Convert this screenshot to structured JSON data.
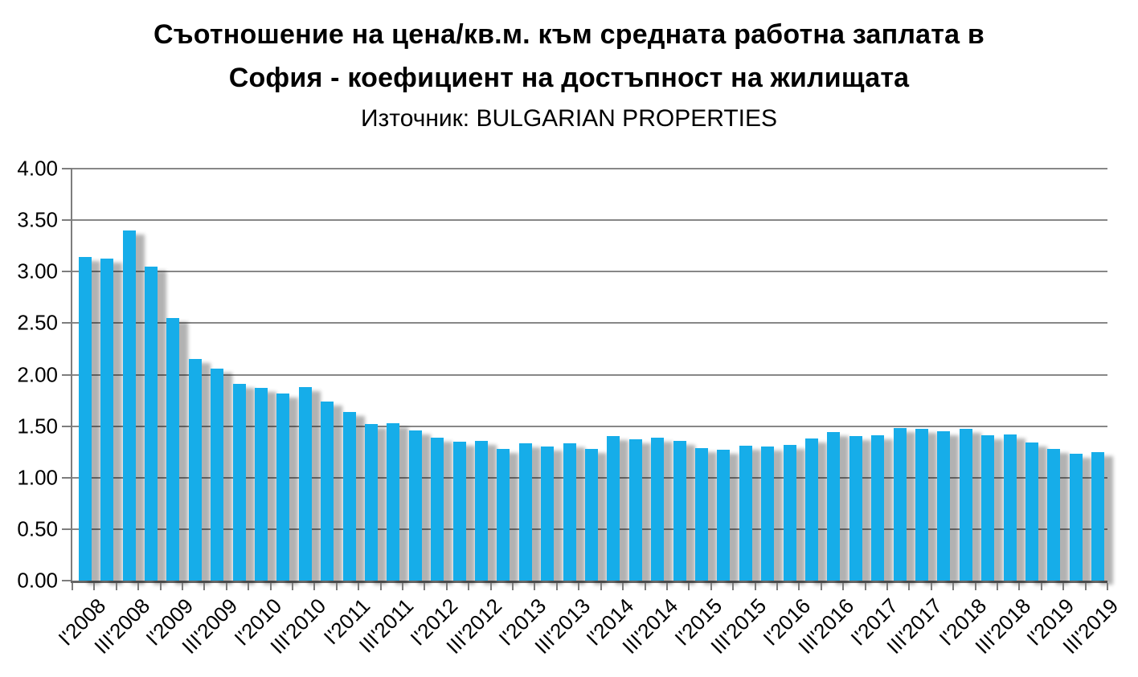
{
  "title": {
    "line1": "Съотношение на цена/кв.м. към средната работна заплата в",
    "line2": "София - коефициент на достъпност на жилищата",
    "source": "Източник: BULGARIAN PROPERTIES"
  },
  "chart_data": {
    "type": "bar",
    "title": "Съотношение на цена/кв.м. към средната работна заплата в София - коефициент на достъпност на жилищата",
    "subtitle": "Източник: BULGARIAN PROPERTIES",
    "categories": [
      "I'2008",
      "II'2008",
      "III'2008",
      "IV'2008",
      "I'2009",
      "II'2009",
      "III'2009",
      "IV'2009",
      "I'2010",
      "II'2010",
      "III'2010",
      "IV'2010",
      "I'2011",
      "II'2011",
      "III'2011",
      "IV'2011",
      "I'2012",
      "II'2012",
      "III'2012",
      "IV'2012",
      "I'2013",
      "II'2013",
      "III'2013",
      "IV'2013",
      "I'2014",
      "II'2014",
      "III'2014",
      "IV'2014",
      "I'2015",
      "II'2015",
      "III'2015",
      "IV'2015",
      "I'2016",
      "II'2016",
      "III'2016",
      "IV'2016",
      "I'2017",
      "II'2017",
      "III'2017",
      "IV'2017",
      "I'2018",
      "II'2018",
      "III'2018",
      "IV'2018",
      "I'2019",
      "II'2019",
      "III'2019"
    ],
    "values": [
      3.14,
      3.13,
      3.4,
      3.05,
      2.55,
      2.15,
      2.06,
      1.91,
      1.87,
      1.82,
      1.88,
      1.74,
      1.64,
      1.52,
      1.53,
      1.46,
      1.39,
      1.35,
      1.36,
      1.28,
      1.33,
      1.3,
      1.33,
      1.28,
      1.4,
      1.37,
      1.39,
      1.36,
      1.29,
      1.27,
      1.31,
      1.3,
      1.32,
      1.38,
      1.44,
      1.4,
      1.41,
      1.48,
      1.47,
      1.45,
      1.47,
      1.41,
      1.42,
      1.34,
      1.28,
      1.23,
      1.25
    ],
    "x_label_interval": 2,
    "visible_x_labels": [
      "I'2008",
      "III'2008",
      "I'2009",
      "III'2009",
      "I'2010",
      "III'2010",
      "I'2011",
      "III'2011",
      "I'2012",
      "III'2012",
      "I'2013",
      "III'2013",
      "I'2014",
      "III'2014",
      "I'2015",
      "III'2015",
      "I'2016",
      "III'2016",
      "I'2017",
      "III'2017",
      "I'2018",
      "III'2018",
      "I'2019",
      "III'2019"
    ],
    "ylim": [
      0,
      4
    ],
    "ytick_step": 0.5,
    "ytick_labels": [
      "0.00",
      "0.50",
      "1.00",
      "1.50",
      "2.00",
      "2.50",
      "3.00",
      "3.50",
      "4.00"
    ],
    "grid": true,
    "legend_position": "none",
    "bar_color": "#16ADE9",
    "gridline_color": "#878787",
    "axis_color": "#666666",
    "text_color": "#000000"
  }
}
